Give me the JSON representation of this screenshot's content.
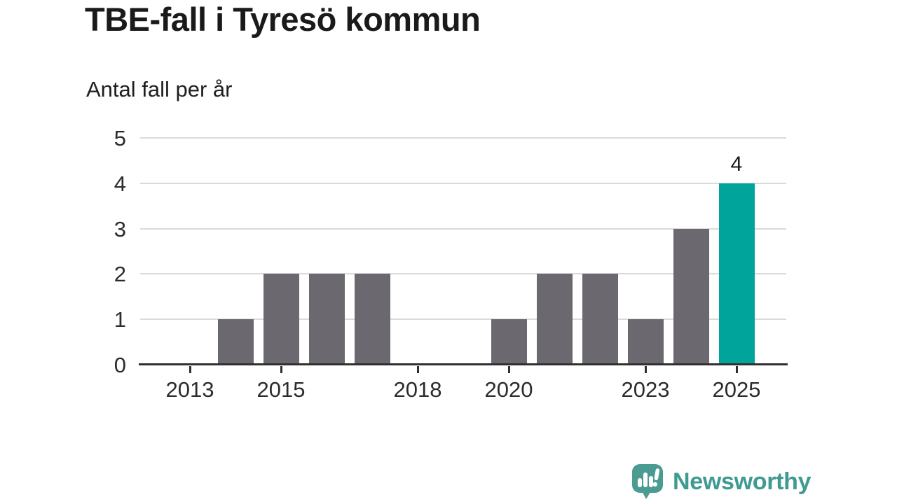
{
  "chart_data": {
    "type": "bar",
    "title": "TBE-fall i Tyresö kommun",
    "subtitle": "Antal fall per år",
    "ylabel": "Antal fall per år",
    "xlabel": "",
    "categories": [
      "2012",
      "2013",
      "2014",
      "2015",
      "2016",
      "2017",
      "2018",
      "2019",
      "2020",
      "2021",
      "2022",
      "2023",
      "2024",
      "2025"
    ],
    "values": [
      0,
      0,
      1,
      2,
      2,
      2,
      0,
      0,
      1,
      2,
      2,
      1,
      3,
      4
    ],
    "ylim": [
      0,
      5
    ],
    "y_ticks": [
      0,
      1,
      2,
      3,
      4,
      5
    ],
    "x_tick_labels": [
      "2013",
      "2015",
      "2018",
      "2020",
      "2023",
      "2025"
    ],
    "grid": true,
    "legend": "none",
    "bar_color": "#6b6870",
    "highlight": {
      "category": "2025",
      "color": "#00a49b",
      "data_label": "4"
    },
    "axis_color": "#303030",
    "grid_color": "#dadada",
    "label_color": "#2b2b2b"
  },
  "branding": {
    "logo_text": "Newsworthy",
    "icon_color": "#4a9c92",
    "text_color": "#3f9a90"
  }
}
